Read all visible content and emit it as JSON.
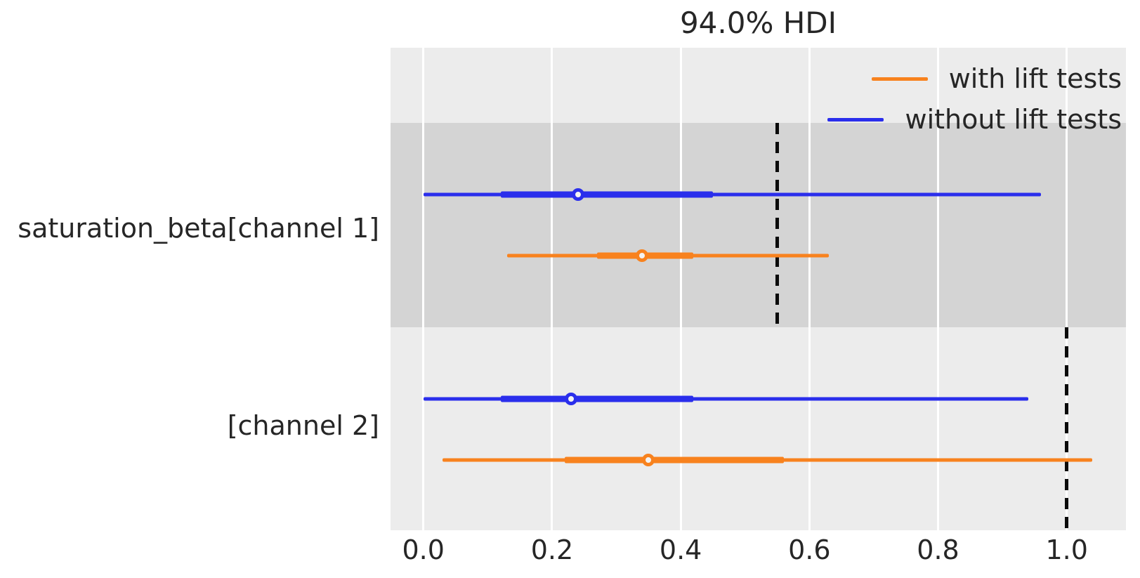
{
  "figure": {
    "background": "#ffffff",
    "plot_background": "#ececec",
    "shaded_band_color": "#d4d4d4",
    "gridline_color": "#ffffff",
    "text_color": "#262626",
    "reference_line_color": "#0b0b0b"
  },
  "chart_data": {
    "type": "forest",
    "title": "94.0% HDI",
    "hdi_probability": "94.0%",
    "xlabel": "",
    "ylabel": "",
    "x_ticks": [
      "0.0",
      "0.2",
      "0.4",
      "0.6",
      "0.8",
      "1.0"
    ],
    "x_tick_values": [
      0.0,
      0.2,
      0.4,
      0.6,
      0.8,
      1.0
    ],
    "x_view": [
      -0.051,
      1.092
    ],
    "grid": "vertical-only",
    "legend_position": "upper-right",
    "legend": [
      {
        "label": "with lift tests",
        "color": "#f8821e"
      },
      {
        "label": "without lift tests",
        "color": "#2a2eec"
      }
    ],
    "variables": [
      {
        "label": "saturation_beta[channel 1]",
        "shaded": true,
        "reference_value": 0.55,
        "series": [
          {
            "name": "without lift tests",
            "color": "#2a2eec",
            "hdi": [
              0.0,
              0.96
            ],
            "quartile": [
              0.12,
              0.45
            ],
            "median": 0.24
          },
          {
            "name": "with lift tests",
            "color": "#f8821e",
            "hdi": [
              0.13,
              0.63
            ],
            "quartile": [
              0.27,
              0.42
            ],
            "median": 0.34
          }
        ]
      },
      {
        "label": "[channel 2]",
        "shaded": false,
        "reference_value": 1.0,
        "series": [
          {
            "name": "without lift tests",
            "color": "#2a2eec",
            "hdi": [
              0.0,
              0.94
            ],
            "quartile": [
              0.12,
              0.42
            ],
            "median": 0.23
          },
          {
            "name": "with lift tests",
            "color": "#f8821e",
            "hdi": [
              0.03,
              1.04
            ],
            "quartile": [
              0.22,
              0.56
            ],
            "median": 0.35
          }
        ]
      }
    ]
  }
}
